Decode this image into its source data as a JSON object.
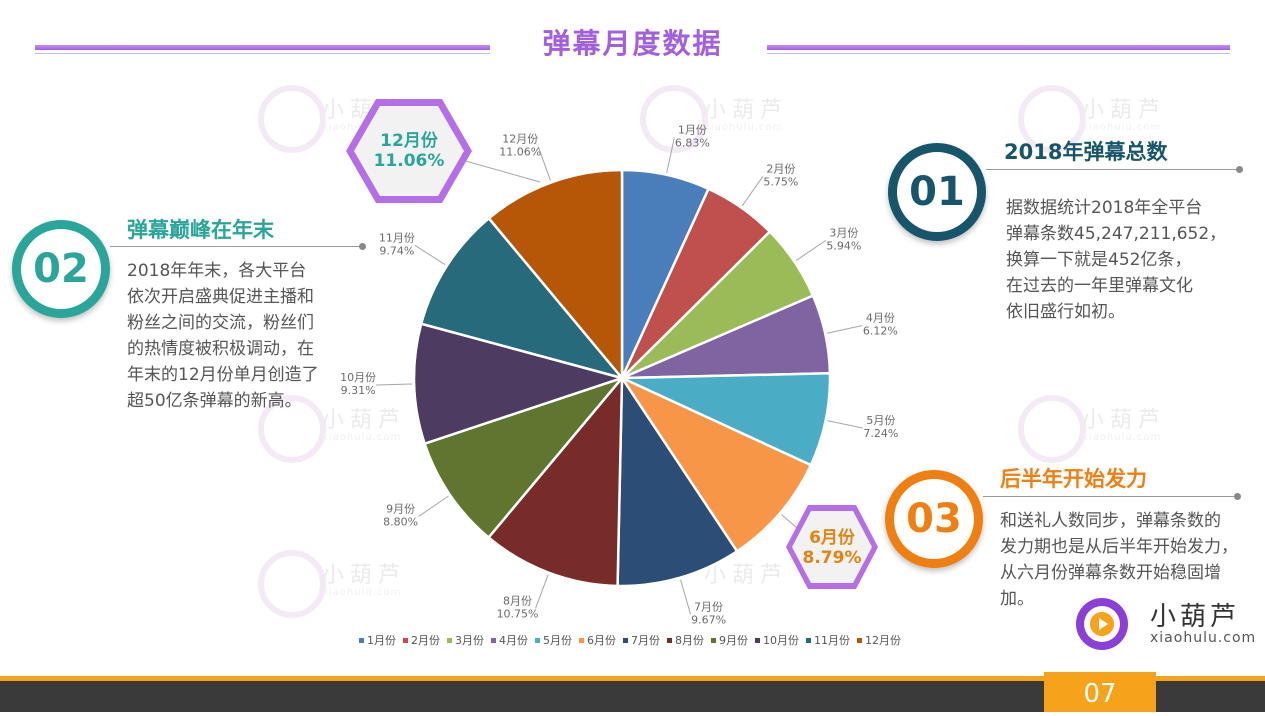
{
  "page_title": "弹幕月度数据",
  "watermark": {
    "text": "小葫芦",
    "sub": "xiaohulu.com"
  },
  "sections": {
    "s01": {
      "number": "01",
      "heading": "2018年弹幕总数",
      "color": "#17566a",
      "lines": [
        "据数据统计2018年全平台",
        "弹幕条数45,247,211,652，",
        "换算一下就是452亿条，",
        "在过去的一年里弹幕文化",
        "依旧盛行如初。"
      ]
    },
    "s02": {
      "number": "02",
      "heading": "弹幕巅峰在年末",
      "color": "#2aa59a",
      "lines": [
        "2018年年末，各大平台",
        "依次开启盛典促进主播和",
        "粉丝之间的交流，粉丝们",
        "的热情度被积极调动，在",
        "年末的12月份单月创造了",
        "超50亿条弹幕的新高。"
      ]
    },
    "s03": {
      "number": "03",
      "heading": "后半年开始发力",
      "color": "#f07f12",
      "lines": [
        "和送礼人数同步，弹幕条数的",
        "发力期也是从后半年开始发力，",
        "从六月份弹幕条数开始稳固增",
        "加。"
      ]
    }
  },
  "callouts": {
    "dec": {
      "label": "12月份",
      "value": "11.06%",
      "color": "#2aa59a"
    },
    "jun": {
      "label": "6月份",
      "value": "8.79%",
      "color": "#e6820e"
    }
  },
  "logo": {
    "name": "小葫芦",
    "url": "xiaohulu.com"
  },
  "page_number": "07",
  "chart_data": {
    "type": "pie",
    "categories": [
      "1月份",
      "2月份",
      "3月份",
      "4月份",
      "5月份",
      "6月份",
      "7月份",
      "8月份",
      "9月份",
      "10月份",
      "11月份",
      "12月份"
    ],
    "values": [
      6.83,
      5.75,
      5.94,
      6.12,
      7.24,
      8.79,
      9.67,
      10.75,
      8.8,
      9.31,
      9.74,
      11.06
    ],
    "value_labels": [
      "6.83%",
      "5.75%",
      "5.94%",
      "6.12%",
      "7.24%",
      "8.79%",
      "9.67%",
      "10.75%",
      "8.80%",
      "9.31%",
      "9.74%",
      "11.06%"
    ],
    "colors": [
      "#4a7ebb",
      "#c0504d",
      "#9bbb59",
      "#8064a2",
      "#4bacc6",
      "#f79646",
      "#2c4d75",
      "#772c2a",
      "#5f7530",
      "#4d3b62",
      "#276a7c",
      "#b65708"
    ],
    "legend_position": "bottom"
  }
}
